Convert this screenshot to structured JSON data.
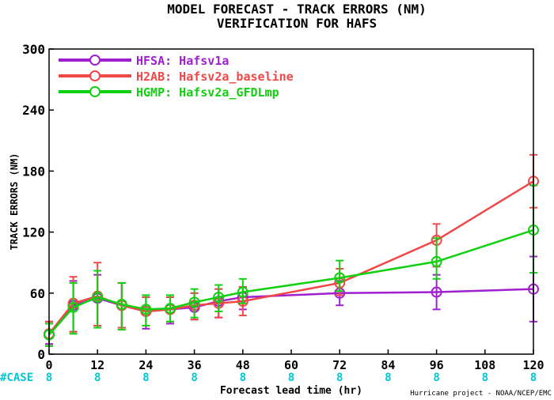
{
  "chart_data": {
    "type": "line",
    "title": "MODEL FORECAST - TRACK ERRORS (NM)",
    "subtitle": "VERIFICATION FOR HAFS",
    "xlabel": "Forecast lead time (hr)",
    "ylabel": "TRACK ERRORS (NM)",
    "xlim": [
      0,
      120
    ],
    "ylim": [
      0,
      300
    ],
    "x_ticks": [
      0,
      12,
      24,
      36,
      48,
      60,
      72,
      84,
      96,
      108,
      120
    ],
    "y_ticks": [
      0,
      60,
      120,
      180,
      240,
      300
    ],
    "y_tick_labels": [
      "0",
      "60",
      "120",
      "180",
      "240",
      "300"
    ],
    "case_label": "#CASE",
    "case_counts": [
      {
        "x": 0,
        "n": "8"
      },
      {
        "x": 12,
        "n": "8"
      },
      {
        "x": 24,
        "n": "8"
      },
      {
        "x": 36,
        "n": "8"
      },
      {
        "x": 48,
        "n": "8"
      },
      {
        "x": 60,
        "n": "8"
      },
      {
        "x": 72,
        "n": "8"
      },
      {
        "x": 84,
        "n": "8"
      },
      {
        "x": 96,
        "n": "8"
      },
      {
        "x": 108,
        "n": "8"
      },
      {
        "x": 120,
        "n": "8"
      }
    ],
    "footer": "Hurricane project - NOAA/NCEP/EMC",
    "series": [
      {
        "name": "HFSA: Hafsv1a",
        "color": "#a020d0",
        "x": [
          0,
          6,
          12,
          18,
          24,
          30,
          36,
          42,
          48,
          72,
          96,
          120
        ],
        "values": [
          19,
          48,
          55,
          48,
          42,
          44,
          46,
          52,
          56,
          60,
          61,
          64
        ],
        "err_low": [
          10,
          22,
          28,
          26,
          25,
          30,
          34,
          36,
          44,
          48,
          44,
          32
        ],
        "err_high": [
          32,
          72,
          78,
          70,
          56,
          56,
          60,
          64,
          66,
          72,
          78,
          96
        ]
      },
      {
        "name": "H2AB: Hafsv2a_baseline",
        "color": "#f04848",
        "x": [
          0,
          6,
          12,
          18,
          24,
          30,
          36,
          42,
          48,
          72,
          96,
          120
        ],
        "values": [
          20,
          50,
          57,
          48,
          42,
          44,
          48,
          50,
          52,
          70,
          112,
          170
        ],
        "err_low": [
          8,
          22,
          28,
          26,
          28,
          32,
          34,
          36,
          38,
          58,
          86,
          144
        ],
        "err_high": [
          32,
          76,
          90,
          70,
          56,
          56,
          60,
          64,
          66,
          84,
          128,
          196
        ]
      },
      {
        "name": "HGMP: Hafsv2a_GFDLmp",
        "color": "#10d010",
        "x": [
          0,
          6,
          12,
          18,
          24,
          30,
          36,
          42,
          48,
          72,
          96,
          120
        ],
        "values": [
          19,
          46,
          56,
          49,
          44,
          45,
          51,
          56,
          61,
          75,
          91,
          122
        ],
        "err_low": [
          8,
          20,
          26,
          24,
          28,
          32,
          36,
          42,
          50,
          62,
          74,
          80
        ],
        "err_high": [
          30,
          70,
          82,
          70,
          58,
          58,
          64,
          68,
          74,
          92,
          114,
          166
        ]
      }
    ]
  }
}
